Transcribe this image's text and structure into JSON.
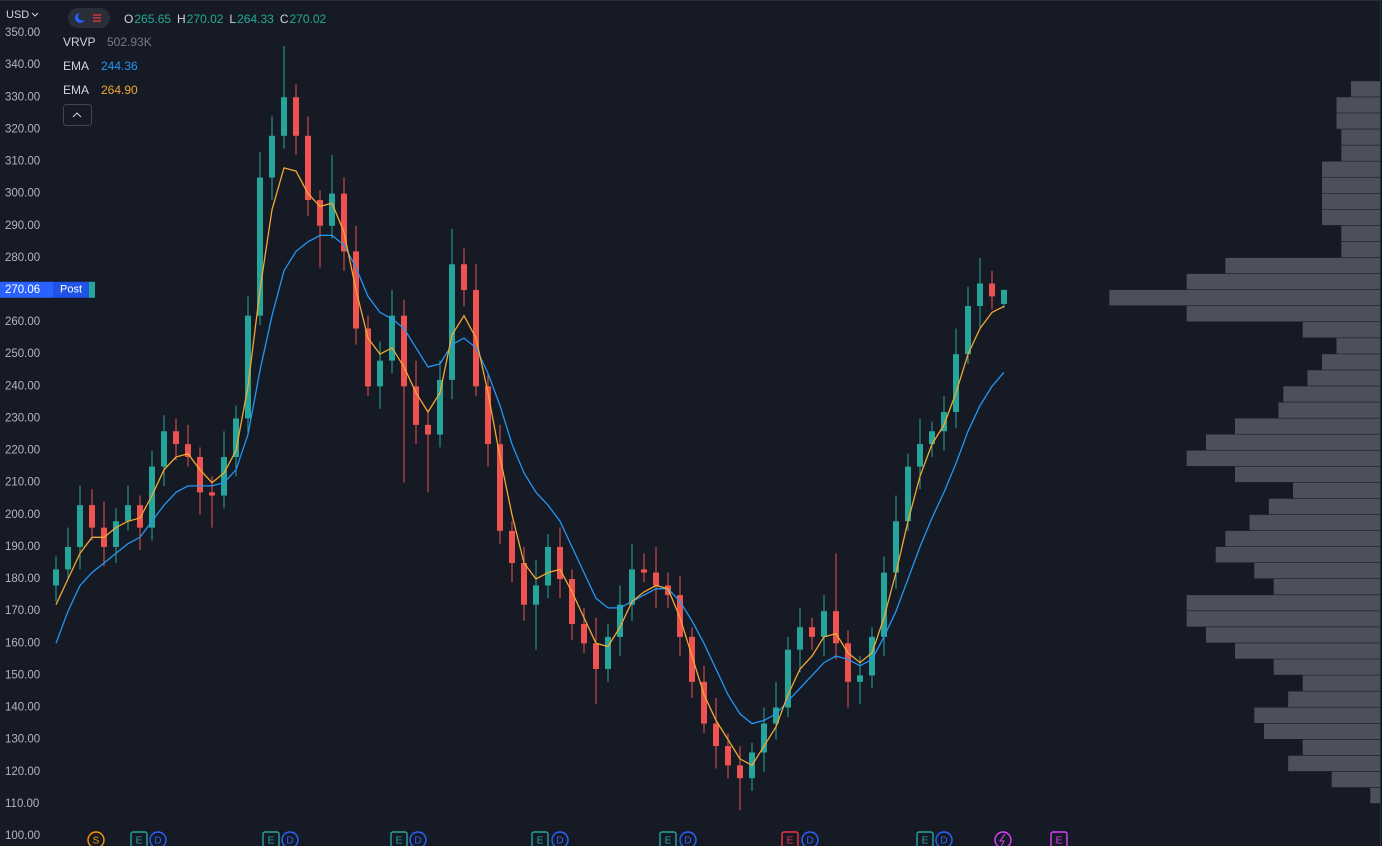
{
  "header": {
    "currency": "USD",
    "ohlc": [
      {
        "label": "O",
        "value": "265.65"
      },
      {
        "label": "H",
        "value": "270.02"
      },
      {
        "label": "L",
        "value": "264.33"
      },
      {
        "label": "C",
        "value": "270.02"
      }
    ]
  },
  "chart_data": {
    "type": "candlestick",
    "open": [
      178,
      183,
      190,
      203,
      196,
      190,
      198,
      203,
      196,
      215,
      226,
      222,
      218,
      207,
      206,
      218,
      230,
      262,
      305,
      318,
      330,
      318,
      298,
      290,
      300,
      282,
      258,
      240,
      248,
      262,
      240,
      228,
      225,
      242,
      278,
      270,
      240,
      222,
      195,
      185,
      172,
      178,
      190,
      180,
      166,
      160,
      152,
      162,
      172,
      183,
      182,
      178,
      175,
      162,
      148,
      135,
      128,
      122,
      118,
      126,
      135,
      140,
      158,
      165,
      162,
      170,
      160,
      148,
      150,
      162,
      182,
      198,
      215,
      222,
      226,
      232,
      250,
      265,
      272,
      265.65
    ],
    "high": [
      187,
      196,
      209,
      208,
      204,
      202,
      209,
      206,
      220,
      231,
      230,
      228,
      221,
      212,
      226,
      234,
      268,
      313,
      324,
      346,
      334,
      324,
      301,
      312,
      305,
      290,
      262,
      254,
      270,
      267,
      248,
      232,
      248,
      289,
      283,
      278,
      244,
      228,
      198,
      190,
      186,
      194,
      196,
      183,
      171,
      168,
      166,
      178,
      191,
      188,
      190,
      182,
      181,
      165,
      153,
      143,
      132,
      128,
      129,
      140,
      148,
      162,
      171,
      168,
      175,
      188,
      164,
      156,
      165,
      187,
      206,
      219,
      230,
      229,
      237,
      258,
      271,
      280,
      276,
      270.02
    ],
    "low": [
      173,
      180,
      183,
      192,
      184,
      185,
      195,
      189,
      192,
      209,
      217,
      215,
      200,
      196,
      202,
      212,
      225,
      259,
      298,
      314,
      312,
      293,
      277,
      286,
      276,
      253,
      237,
      233,
      244,
      210,
      222,
      207,
      221,
      236,
      265,
      237,
      215,
      191,
      179,
      167,
      158,
      174,
      174,
      161,
      157,
      141,
      148,
      156,
      167,
      179,
      171,
      171,
      156,
      143,
      132,
      121,
      118,
      108,
      114,
      120,
      130,
      137,
      151,
      158,
      156,
      155,
      140,
      141,
      146,
      156,
      177,
      195,
      208,
      218,
      220,
      227,
      247,
      258,
      264,
      264.33
    ],
    "close": [
      183,
      190,
      203,
      196,
      190,
      198,
      203,
      196,
      215,
      226,
      222,
      218,
      207,
      206,
      218,
      230,
      262,
      305,
      318,
      330,
      318,
      298,
      290,
      300,
      282,
      258,
      240,
      248,
      262,
      240,
      228,
      225,
      242,
      278,
      270,
      240,
      222,
      195,
      185,
      172,
      178,
      190,
      180,
      166,
      160,
      152,
      162,
      172,
      183,
      182,
      178,
      175,
      162,
      148,
      135,
      128,
      122,
      118,
      126,
      135,
      140,
      158,
      165,
      162,
      170,
      160,
      148,
      150,
      162,
      182,
      198,
      215,
      222,
      226,
      232,
      250,
      265,
      272,
      268,
      270.02
    ],
    "up_color": "#26a69a",
    "down_color": "#ef5350",
    "series": [
      {
        "name": "EMA",
        "label": "244.36",
        "color": "#2196f3",
        "values": [
          160,
          170,
          178,
          182,
          185,
          188,
          191,
          193,
          198,
          203,
          207,
          209,
          209,
          209,
          210,
          214,
          225,
          245,
          262,
          276,
          282,
          285,
          287,
          287,
          284,
          277,
          268,
          263,
          261,
          258,
          252,
          246,
          247,
          253,
          255,
          252,
          244,
          234,
          222,
          213,
          207,
          203,
          198,
          190,
          182,
          174,
          171,
          171,
          173,
          175,
          177,
          177,
          173,
          167,
          160,
          152,
          144,
          138,
          135,
          136,
          138,
          142,
          146,
          150,
          154,
          156,
          155,
          153,
          155,
          162,
          170,
          180,
          190,
          199,
          207,
          216,
          226,
          234,
          240,
          244.36
        ]
      },
      {
        "name": "EMA",
        "label": "264.90",
        "color": "#f0a830",
        "values": [
          172,
          180,
          188,
          193,
          193,
          196,
          198,
          199,
          206,
          214,
          218,
          219,
          214,
          210,
          213,
          220,
          240,
          270,
          295,
          308,
          307,
          300,
          296,
          297,
          288,
          270,
          255,
          250,
          252,
          246,
          238,
          232,
          238,
          256,
          262,
          255,
          238,
          218,
          200,
          185,
          180,
          182,
          183,
          176,
          168,
          160,
          159,
          165,
          173,
          176,
          178,
          177,
          168,
          156,
          144,
          136,
          130,
          124,
          122,
          128,
          134,
          144,
          152,
          156,
          162,
          163,
          157,
          154,
          157,
          168,
          182,
          198,
          212,
          222,
          228,
          238,
          250,
          258,
          263,
          264.9
        ]
      }
    ],
    "ylim": [
      100,
      350
    ],
    "yticks": [
      {
        "value": 100,
        "label": "100.00"
      },
      {
        "value": 110,
        "label": "110.00"
      },
      {
        "value": 120,
        "label": "120.00"
      },
      {
        "value": 130,
        "label": "130.00"
      },
      {
        "value": 140,
        "label": "140.00"
      },
      {
        "value": 150,
        "label": "150.00"
      },
      {
        "value": 160,
        "label": "160.00"
      },
      {
        "value": 170,
        "label": "170.00"
      },
      {
        "value": 180,
        "label": "180.00"
      },
      {
        "value": 190,
        "label": "190.00"
      },
      {
        "value": 200,
        "label": "200.00"
      },
      {
        "value": 210,
        "label": "210.00"
      },
      {
        "value": 220,
        "label": "220.00"
      },
      {
        "value": 230,
        "label": "230.00"
      },
      {
        "value": 240,
        "label": "240.00"
      },
      {
        "value": 250,
        "label": "250.00"
      },
      {
        "value": 260,
        "label": "260.00"
      },
      {
        "value": 270,
        "label": "270.00"
      },
      {
        "value": 280,
        "label": "280.00"
      },
      {
        "value": 290,
        "label": "290.00"
      },
      {
        "value": 300,
        "label": "300.00"
      },
      {
        "value": 310,
        "label": "310.00"
      },
      {
        "value": 320,
        "label": "320.00"
      },
      {
        "value": 330,
        "label": "330.00"
      },
      {
        "value": 340,
        "label": "340.00"
      },
      {
        "value": 350,
        "label": "350.00"
      }
    ],
    "last_price": 270.06,
    "session": "Post",
    "volume_profile": {
      "name": "VRVP",
      "total": "502.93K",
      "color": "#4c505b",
      "xlim": [
        0,
        300
      ],
      "bins": [
        110,
        115,
        120,
        125,
        130,
        135,
        140,
        145,
        150,
        155,
        160,
        165,
        170,
        175,
        180,
        185,
        190,
        195,
        200,
        205,
        210,
        215,
        220,
        225,
        230,
        235,
        240,
        245,
        250,
        255,
        260,
        265,
        270,
        275,
        280,
        285,
        290,
        295,
        300,
        305,
        310,
        315,
        320,
        325,
        330,
        335
      ],
      "values": [
        10,
        50,
        95,
        80,
        120,
        130,
        95,
        80,
        110,
        150,
        180,
        200,
        200,
        110,
        130,
        170,
        160,
        135,
        115,
        90,
        150,
        200,
        180,
        150,
        105,
        100,
        75,
        60,
        45,
        80,
        200,
        280,
        200,
        160,
        40,
        40,
        60,
        60,
        60,
        60,
        40,
        40,
        45,
        45,
        30
      ]
    },
    "events": [
      {
        "label": "S",
        "color": "#ff9800"
      },
      {
        "label": "E",
        "color": "#26a69a"
      },
      {
        "label": "D",
        "color": "#2962ff"
      },
      {
        "label": "E",
        "color": "#26a69a"
      },
      {
        "label": "D",
        "color": "#2962ff"
      },
      {
        "label": "E",
        "color": "#26a69a"
      },
      {
        "label": "D",
        "color": "#2962ff"
      },
      {
        "label": "E",
        "color": "#26a69a"
      },
      {
        "label": "D",
        "color": "#2962ff"
      },
      {
        "label": "E",
        "color": "#26a69a"
      },
      {
        "label": "D",
        "color": "#2962ff"
      },
      {
        "label": "E",
        "color": "#f23645"
      },
      {
        "label": "D",
        "color": "#2962ff"
      },
      {
        "label": "E",
        "color": "#26a69a"
      },
      {
        "label": "D",
        "color": "#2962ff"
      },
      {
        "label": "E",
        "color": "#e040fb"
      }
    ]
  }
}
